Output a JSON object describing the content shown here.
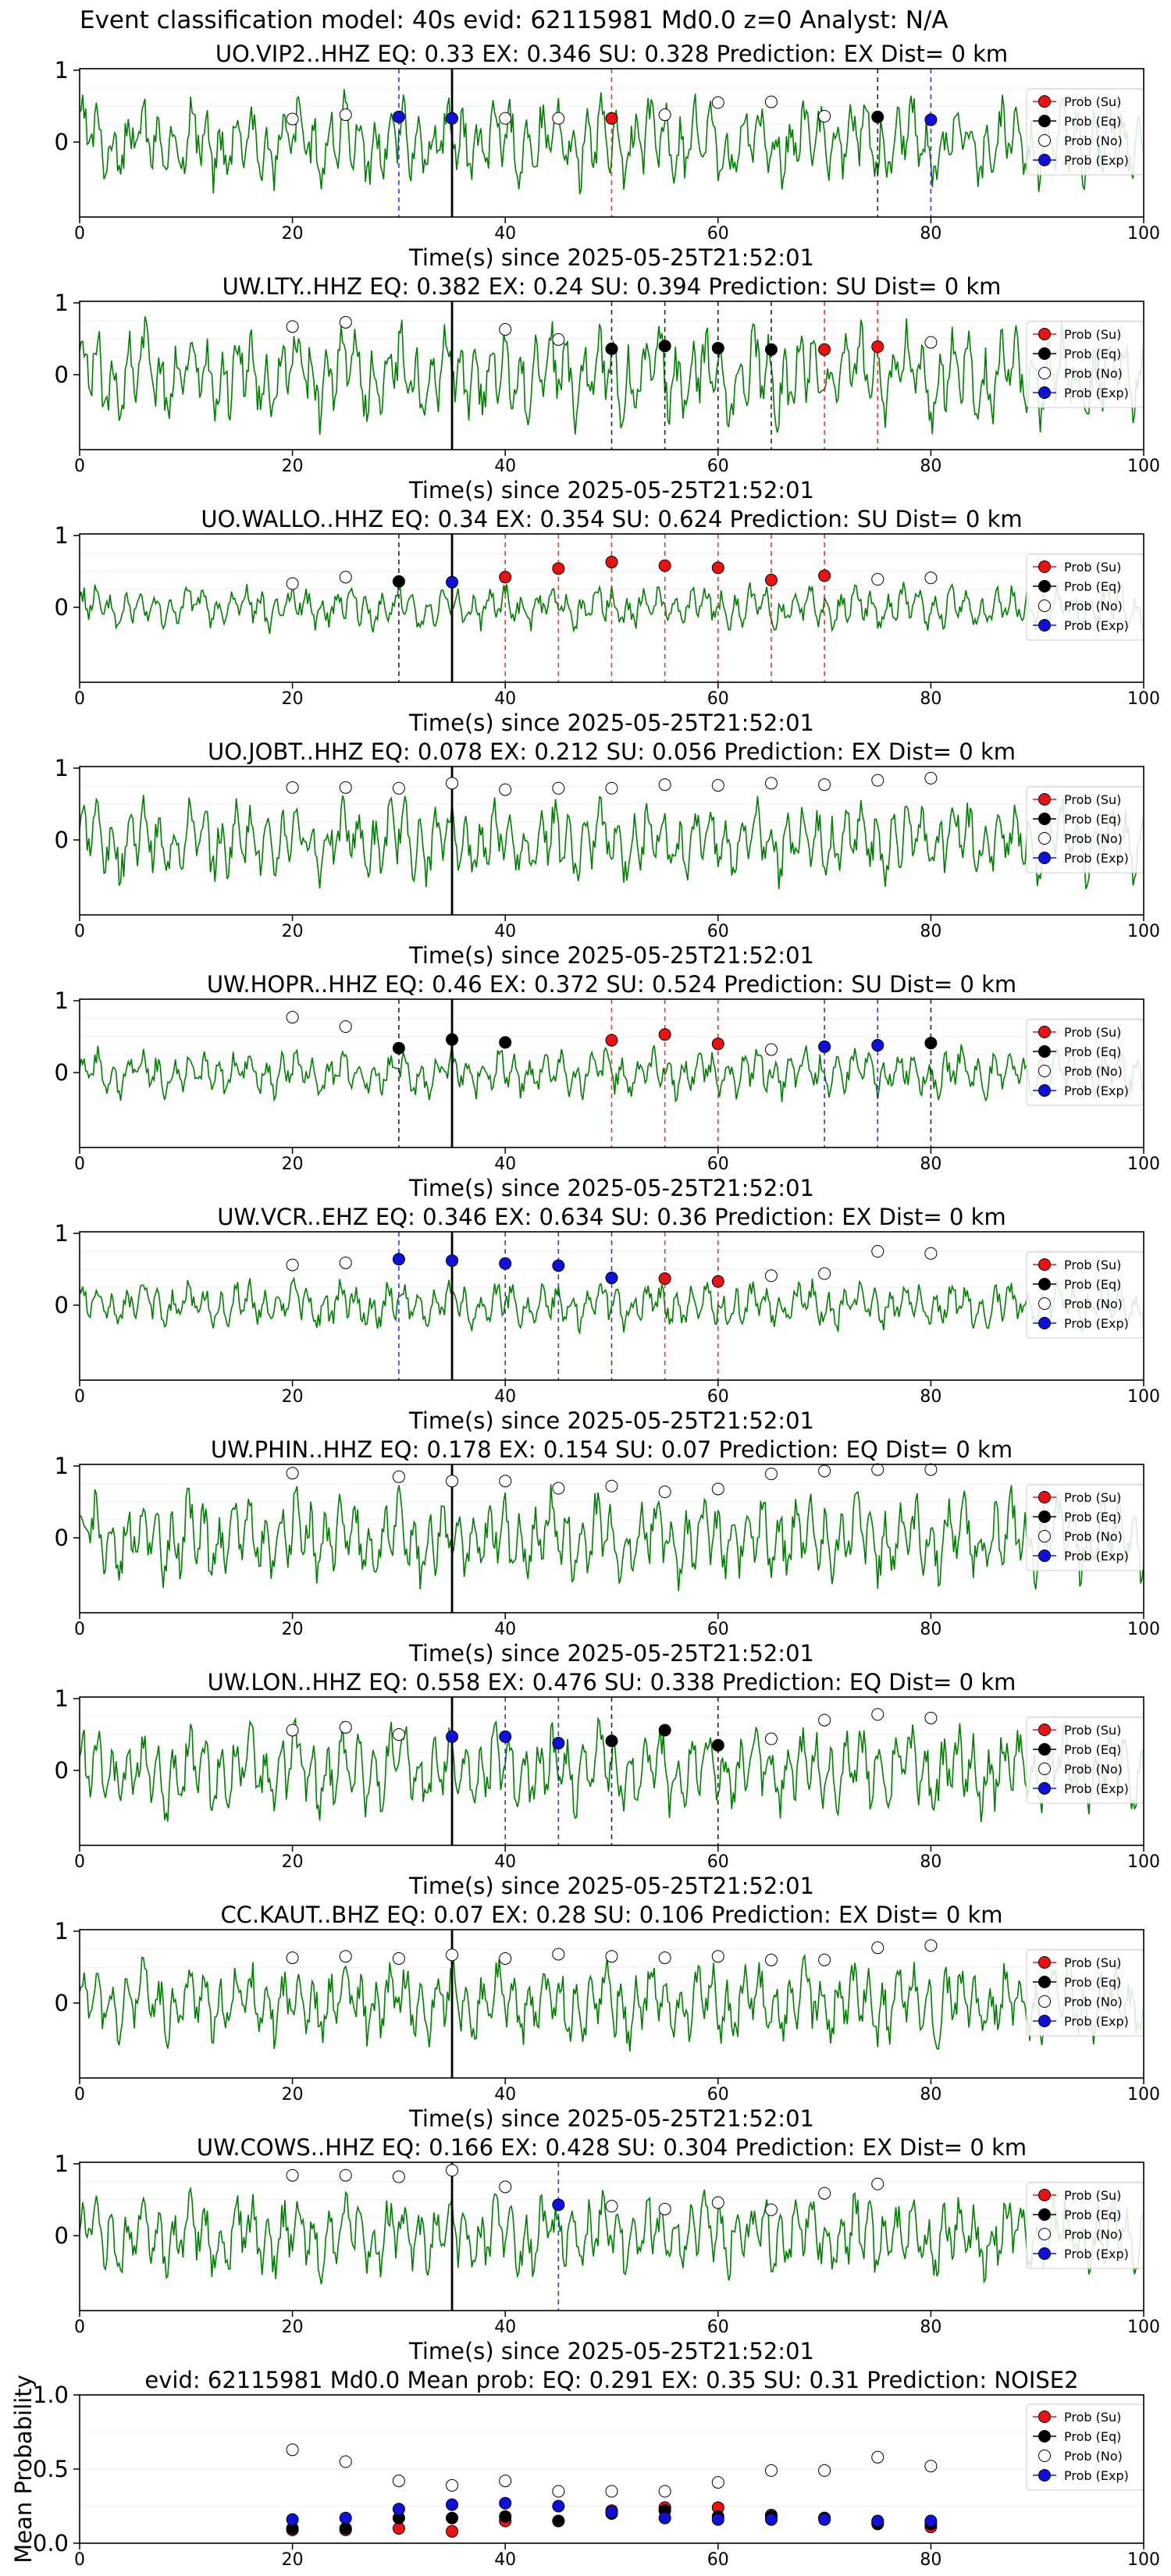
{
  "suptitle": "Event classification model: 40s evid: 62115981 Md0.0 z=0 Analyst: N/A",
  "xlabel": "Time(s) since 2025-05-25T21:52:01",
  "legend": [
    "Prob (Su)",
    "Prob (Eq)",
    "Prob (No)",
    "Prob (Exp)"
  ],
  "colors": {
    "trace": "#008000",
    "su": "#ee1111",
    "eq": "#000000",
    "no": "#ffffff",
    "exp": "#1010dd"
  },
  "chart_data": [
    {
      "type": "line",
      "title": "UO.VIP2..HHZ   EQ: 0.33  EX: 0.346  SU: 0.328   Prediction: EX    Dist= 0 km",
      "xlim": [
        0,
        100
      ],
      "xticks": [
        0,
        20,
        40,
        60,
        80,
        100
      ],
      "yticks": [
        1,
        0
      ],
      "pick": 35,
      "amp": 0.55,
      "su": [
        50
      ],
      "eq": [
        75
      ],
      "exp": [
        30,
        80
      ],
      "points": [
        {
          "t": 20,
          "c": "no",
          "y": 0.32
        },
        {
          "t": 25,
          "c": "no",
          "y": 0.38
        },
        {
          "t": 30,
          "c": "exp",
          "y": 0.35
        },
        {
          "t": 35,
          "c": "exp",
          "y": 0.33
        },
        {
          "t": 40,
          "c": "no",
          "y": 0.33
        },
        {
          "t": 45,
          "c": "no",
          "y": 0.33
        },
        {
          "t": 50,
          "c": "su",
          "y": 0.33
        },
        {
          "t": 55,
          "c": "no",
          "y": 0.38
        },
        {
          "t": 60,
          "c": "no",
          "y": 0.55
        },
        {
          "t": 65,
          "c": "no",
          "y": 0.56
        },
        {
          "t": 70,
          "c": "no",
          "y": 0.36
        },
        {
          "t": 75,
          "c": "eq",
          "y": 0.35
        },
        {
          "t": 80,
          "c": "exp",
          "y": 0.31
        }
      ]
    },
    {
      "type": "line",
      "title": "UW.LTY..HHZ   EQ: 0.382  EX: 0.24  SU: 0.394   Prediction: SU    Dist= 0 km",
      "xlim": [
        0,
        100
      ],
      "xticks": [
        0,
        20,
        40,
        60,
        80,
        100
      ],
      "yticks": [
        1,
        0
      ],
      "pick": 35,
      "amp": 0.6,
      "su": [
        70,
        75
      ],
      "eq": [
        50,
        55,
        60,
        65
      ],
      "exp": [],
      "points": [
        {
          "t": 20,
          "c": "no",
          "y": 0.67
        },
        {
          "t": 25,
          "c": "no",
          "y": 0.73
        },
        {
          "t": 40,
          "c": "no",
          "y": 0.63
        },
        {
          "t": 45,
          "c": "no",
          "y": 0.49
        },
        {
          "t": 50,
          "c": "eq",
          "y": 0.36
        },
        {
          "t": 55,
          "c": "eq",
          "y": 0.4
        },
        {
          "t": 60,
          "c": "eq",
          "y": 0.37
        },
        {
          "t": 65,
          "c": "eq",
          "y": 0.35
        },
        {
          "t": 70,
          "c": "su",
          "y": 0.35
        },
        {
          "t": 75,
          "c": "su",
          "y": 0.39
        },
        {
          "t": 80,
          "c": "no",
          "y": 0.45
        }
      ]
    },
    {
      "type": "line",
      "title": "UO.WALLO..HHZ   EQ: 0.34  EX: 0.354  SU: 0.624   Prediction: SU    Dist= 0 km",
      "xlim": [
        0,
        100
      ],
      "xticks": [
        0,
        20,
        40,
        60,
        80,
        100
      ],
      "yticks": [
        1,
        0
      ],
      "pick": 35,
      "amp": 0.28,
      "su": [
        40,
        45,
        50,
        55,
        60,
        65,
        70
      ],
      "eq": [
        30
      ],
      "exp": [],
      "points": [
        {
          "t": 20,
          "c": "no",
          "y": 0.33
        },
        {
          "t": 25,
          "c": "no",
          "y": 0.42
        },
        {
          "t": 30,
          "c": "eq",
          "y": 0.36
        },
        {
          "t": 35,
          "c": "exp",
          "y": 0.35
        },
        {
          "t": 40,
          "c": "su",
          "y": 0.42
        },
        {
          "t": 45,
          "c": "su",
          "y": 0.54
        },
        {
          "t": 50,
          "c": "su",
          "y": 0.63
        },
        {
          "t": 55,
          "c": "su",
          "y": 0.58
        },
        {
          "t": 60,
          "c": "su",
          "y": 0.55
        },
        {
          "t": 65,
          "c": "su",
          "y": 0.38
        },
        {
          "t": 70,
          "c": "su",
          "y": 0.44
        },
        {
          "t": 75,
          "c": "no",
          "y": 0.39
        },
        {
          "t": 80,
          "c": "no",
          "y": 0.41
        }
      ]
    },
    {
      "type": "line",
      "title": "UO.JOBT..HHZ   EQ: 0.078  EX: 0.212  SU: 0.056   Prediction: EX    Dist= 0 km",
      "xlim": [
        0,
        100
      ],
      "xticks": [
        0,
        20,
        40,
        60,
        80,
        100
      ],
      "yticks": [
        1,
        0
      ],
      "pick": 35,
      "amp": 0.5,
      "su": [],
      "eq": [],
      "exp": [],
      "points": [
        {
          "t": 20,
          "c": "no",
          "y": 0.73
        },
        {
          "t": 25,
          "c": "no",
          "y": 0.73
        },
        {
          "t": 30,
          "c": "no",
          "y": 0.72
        },
        {
          "t": 35,
          "c": "no",
          "y": 0.79
        },
        {
          "t": 40,
          "c": "no",
          "y": 0.7
        },
        {
          "t": 45,
          "c": "no",
          "y": 0.72
        },
        {
          "t": 50,
          "c": "no",
          "y": 0.72
        },
        {
          "t": 55,
          "c": "no",
          "y": 0.77
        },
        {
          "t": 60,
          "c": "no",
          "y": 0.76
        },
        {
          "t": 65,
          "c": "no",
          "y": 0.79
        },
        {
          "t": 70,
          "c": "no",
          "y": 0.77
        },
        {
          "t": 75,
          "c": "no",
          "y": 0.83
        },
        {
          "t": 80,
          "c": "no",
          "y": 0.86
        }
      ]
    },
    {
      "type": "line",
      "title": "UW.HOPR..HHZ   EQ: 0.46  EX: 0.372  SU: 0.524   Prediction: SU    Dist= 0 km",
      "xlim": [
        0,
        100
      ],
      "xticks": [
        0,
        20,
        40,
        60,
        80,
        100
      ],
      "yticks": [
        1,
        0
      ],
      "pick": 35,
      "amp": 0.3,
      "su": [
        50,
        55,
        60
      ],
      "eq": [
        30,
        80
      ],
      "exp": [
        70,
        75
      ],
      "points": [
        {
          "t": 20,
          "c": "no",
          "y": 0.77
        },
        {
          "t": 25,
          "c": "no",
          "y": 0.64
        },
        {
          "t": 30,
          "c": "eq",
          "y": 0.34
        },
        {
          "t": 35,
          "c": "eq",
          "y": 0.46
        },
        {
          "t": 40,
          "c": "eq",
          "y": 0.42
        },
        {
          "t": 50,
          "c": "su",
          "y": 0.45
        },
        {
          "t": 55,
          "c": "su",
          "y": 0.53
        },
        {
          "t": 60,
          "c": "su",
          "y": 0.4
        },
        {
          "t": 65,
          "c": "no",
          "y": 0.32
        },
        {
          "t": 70,
          "c": "exp",
          "y": 0.36
        },
        {
          "t": 75,
          "c": "exp",
          "y": 0.38
        },
        {
          "t": 80,
          "c": "eq",
          "y": 0.41
        }
      ]
    },
    {
      "type": "line",
      "title": "UW.VCR..EHZ   EQ: 0.346  EX: 0.634  SU: 0.36   Prediction: EX    Dist= 0 km",
      "xlim": [
        0,
        100
      ],
      "xticks": [
        0,
        20,
        40,
        60,
        80,
        100
      ],
      "yticks": [
        1,
        0
      ],
      "pick": 35,
      "amp": 0.3,
      "su": [
        55,
        60
      ],
      "eq": [],
      "exp": [
        30,
        40,
        45,
        50
      ],
      "points": [
        {
          "t": 20,
          "c": "no",
          "y": 0.56
        },
        {
          "t": 25,
          "c": "no",
          "y": 0.59
        },
        {
          "t": 30,
          "c": "exp",
          "y": 0.64
        },
        {
          "t": 35,
          "c": "exp",
          "y": 0.62
        },
        {
          "t": 40,
          "c": "exp",
          "y": 0.58
        },
        {
          "t": 45,
          "c": "exp",
          "y": 0.55
        },
        {
          "t": 50,
          "c": "exp",
          "y": 0.38
        },
        {
          "t": 55,
          "c": "su",
          "y": 0.37
        },
        {
          "t": 60,
          "c": "su",
          "y": 0.33
        },
        {
          "t": 65,
          "c": "no",
          "y": 0.41
        },
        {
          "t": 70,
          "c": "no",
          "y": 0.44
        },
        {
          "t": 75,
          "c": "no",
          "y": 0.75
        },
        {
          "t": 80,
          "c": "no",
          "y": 0.72
        }
      ]
    },
    {
      "type": "line",
      "title": "UW.PHIN..HHZ   EQ: 0.178  EX: 0.154  SU: 0.07   Prediction: EQ    Dist= 0 km",
      "xlim": [
        0,
        100
      ],
      "xticks": [
        0,
        20,
        40,
        60,
        80,
        100
      ],
      "yticks": [
        1,
        0
      ],
      "pick": 35,
      "amp": 0.55,
      "su": [],
      "eq": [],
      "exp": [],
      "points": [
        {
          "t": 20,
          "c": "no",
          "y": 0.9
        },
        {
          "t": 30,
          "c": "no",
          "y": 0.85
        },
        {
          "t": 35,
          "c": "no",
          "y": 0.79
        },
        {
          "t": 40,
          "c": "no",
          "y": 0.79
        },
        {
          "t": 45,
          "c": "no",
          "y": 0.69
        },
        {
          "t": 50,
          "c": "no",
          "y": 0.72
        },
        {
          "t": 55,
          "c": "no",
          "y": 0.64
        },
        {
          "t": 60,
          "c": "no",
          "y": 0.68
        },
        {
          "t": 65,
          "c": "no",
          "y": 0.89
        },
        {
          "t": 70,
          "c": "no",
          "y": 0.93
        },
        {
          "t": 75,
          "c": "no",
          "y": 0.95
        },
        {
          "t": 80,
          "c": "no",
          "y": 0.95
        }
      ]
    },
    {
      "type": "line",
      "title": "UW.LON..HHZ   EQ: 0.558  EX: 0.476  SU: 0.338   Prediction: EQ    Dist= 0 km",
      "xlim": [
        0,
        100
      ],
      "xticks": [
        0,
        20,
        40,
        60,
        80,
        100
      ],
      "yticks": [
        1,
        0
      ],
      "pick": 35,
      "amp": 0.55,
      "su": [],
      "eq": [
        50,
        60
      ],
      "exp": [
        40,
        45
      ],
      "points": [
        {
          "t": 20,
          "c": "no",
          "y": 0.56
        },
        {
          "t": 25,
          "c": "no",
          "y": 0.6
        },
        {
          "t": 30,
          "c": "no",
          "y": 0.5
        },
        {
          "t": 35,
          "c": "exp",
          "y": 0.47
        },
        {
          "t": 40,
          "c": "exp",
          "y": 0.47
        },
        {
          "t": 45,
          "c": "exp",
          "y": 0.38
        },
        {
          "t": 50,
          "c": "eq",
          "y": 0.41
        },
        {
          "t": 55,
          "c": "eq",
          "y": 0.56
        },
        {
          "t": 60,
          "c": "eq",
          "y": 0.35
        },
        {
          "t": 65,
          "c": "no",
          "y": 0.44
        },
        {
          "t": 70,
          "c": "no",
          "y": 0.7
        },
        {
          "t": 75,
          "c": "no",
          "y": 0.78
        },
        {
          "t": 80,
          "c": "no",
          "y": 0.73
        }
      ]
    },
    {
      "type": "line",
      "title": "CC.KAUT..BHZ   EQ: 0.07  EX: 0.28  SU: 0.106   Prediction: EX    Dist= 0 km",
      "xlim": [
        0,
        100
      ],
      "xticks": [
        0,
        20,
        40,
        60,
        80,
        100
      ],
      "yticks": [
        1,
        0
      ],
      "pick": 35,
      "amp": 0.5,
      "su": [],
      "eq": [],
      "exp": [],
      "points": [
        {
          "t": 20,
          "c": "no",
          "y": 0.63
        },
        {
          "t": 25,
          "c": "no",
          "y": 0.65
        },
        {
          "t": 30,
          "c": "no",
          "y": 0.62
        },
        {
          "t": 35,
          "c": "no",
          "y": 0.67
        },
        {
          "t": 40,
          "c": "no",
          "y": 0.62
        },
        {
          "t": 45,
          "c": "no",
          "y": 0.68
        },
        {
          "t": 50,
          "c": "no",
          "y": 0.65
        },
        {
          "t": 55,
          "c": "no",
          "y": 0.63
        },
        {
          "t": 60,
          "c": "no",
          "y": 0.65
        },
        {
          "t": 65,
          "c": "no",
          "y": 0.6
        },
        {
          "t": 70,
          "c": "no",
          "y": 0.6
        },
        {
          "t": 75,
          "c": "no",
          "y": 0.77
        },
        {
          "t": 80,
          "c": "no",
          "y": 0.8
        }
      ]
    },
    {
      "type": "line",
      "title": "UW.COWS..HHZ   EQ: 0.166  EX: 0.428  SU: 0.304   Prediction: EX    Dist= 0 km",
      "xlim": [
        0,
        100
      ],
      "xticks": [
        0,
        20,
        40,
        60,
        80,
        100
      ],
      "yticks": [
        1,
        0
      ],
      "pick": 35,
      "amp": 0.5,
      "su": [],
      "eq": [],
      "exp": [
        45
      ],
      "points": [
        {
          "t": 20,
          "c": "no",
          "y": 0.84
        },
        {
          "t": 25,
          "c": "no",
          "y": 0.84
        },
        {
          "t": 30,
          "c": "no",
          "y": 0.82
        },
        {
          "t": 35,
          "c": "no",
          "y": 0.91
        },
        {
          "t": 40,
          "c": "no",
          "y": 0.68
        },
        {
          "t": 45,
          "c": "exp",
          "y": 0.43
        },
        {
          "t": 50,
          "c": "no",
          "y": 0.41
        },
        {
          "t": 55,
          "c": "no",
          "y": 0.37
        },
        {
          "t": 60,
          "c": "no",
          "y": 0.46
        },
        {
          "t": 65,
          "c": "no",
          "y": 0.36
        },
        {
          "t": 70,
          "c": "no",
          "y": 0.59
        },
        {
          "t": 75,
          "c": "no",
          "y": 0.72
        }
      ]
    },
    {
      "type": "scatter",
      "title": "evid: 62115981  Md0.0   Mean prob:   EQ: 0.291  EX: 0.35  SU: 0.31   Prediction: NOISE2",
      "ylabel": "Mean Probability",
      "xlim": [
        0,
        100
      ],
      "ylim": [
        0,
        1
      ],
      "xticks": [
        0,
        20,
        40,
        60,
        80,
        100
      ],
      "yticks": [
        "0.0",
        "0.5",
        "1.0"
      ],
      "x": [
        20,
        25,
        30,
        35,
        40,
        45,
        50,
        55,
        60,
        65,
        70,
        75,
        80
      ],
      "series": [
        {
          "name": "Prob (Su)",
          "values": [
            0.09,
            0.09,
            0.1,
            0.08,
            0.15,
            0.15,
            0.22,
            0.24,
            0.24,
            0.19,
            0.17,
            0.14,
            0.11
          ]
        },
        {
          "name": "Prob (Eq)",
          "values": [
            0.1,
            0.1,
            0.17,
            0.17,
            0.18,
            0.15,
            0.2,
            0.22,
            0.18,
            0.18,
            0.17,
            0.13,
            0.13
          ]
        },
        {
          "name": "Prob (No)",
          "values": [
            0.63,
            0.55,
            0.42,
            0.39,
            0.42,
            0.35,
            0.35,
            0.35,
            0.41,
            0.49,
            0.49,
            0.58,
            0.52
          ]
        },
        {
          "name": "Prob (Exp)",
          "values": [
            0.16,
            0.17,
            0.23,
            0.26,
            0.27,
            0.25,
            0.21,
            0.17,
            0.16,
            0.16,
            0.16,
            0.15,
            0.15
          ]
        }
      ]
    }
  ]
}
